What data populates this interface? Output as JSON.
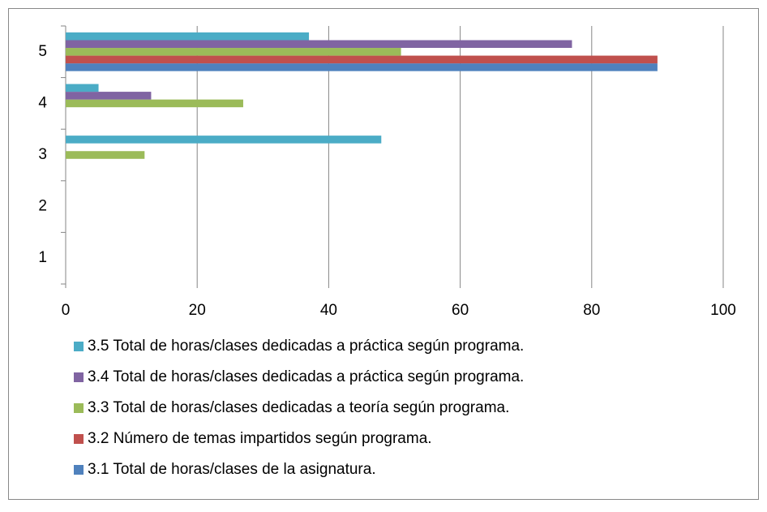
{
  "chart_data": {
    "type": "barh",
    "categories": [
      "1",
      "2",
      "3",
      "4",
      "5"
    ],
    "series": [
      {
        "name": "3.1 Total de horas/clases de la asignatura.",
        "color": "#4f81bd",
        "values": [
          0,
          0,
          0,
          0,
          90
        ]
      },
      {
        "name": "3.2 Número de temas impartidos según programa.",
        "color": "#c0504d",
        "values": [
          0,
          0,
          0,
          0,
          90
        ]
      },
      {
        "name": "3.3 Total de horas/clases dedicadas a teoría según programa.",
        "color": "#9bbb59",
        "values": [
          0,
          0,
          12,
          27,
          51
        ]
      },
      {
        "name": "3.4 Total de horas/clases dedicadas a práctica según programa.",
        "color": "#8064a2",
        "values": [
          0,
          0,
          0,
          13,
          77
        ]
      },
      {
        "name": "3.5 Total de horas/clases dedicadas a práctica según programa.",
        "color": "#4bacc6",
        "values": [
          0,
          0,
          48,
          5,
          37
        ]
      }
    ],
    "xlim": [
      0,
      100
    ],
    "xticks": [
      0,
      20,
      40,
      60,
      80,
      100
    ],
    "grid": true,
    "legend": "bottom"
  }
}
